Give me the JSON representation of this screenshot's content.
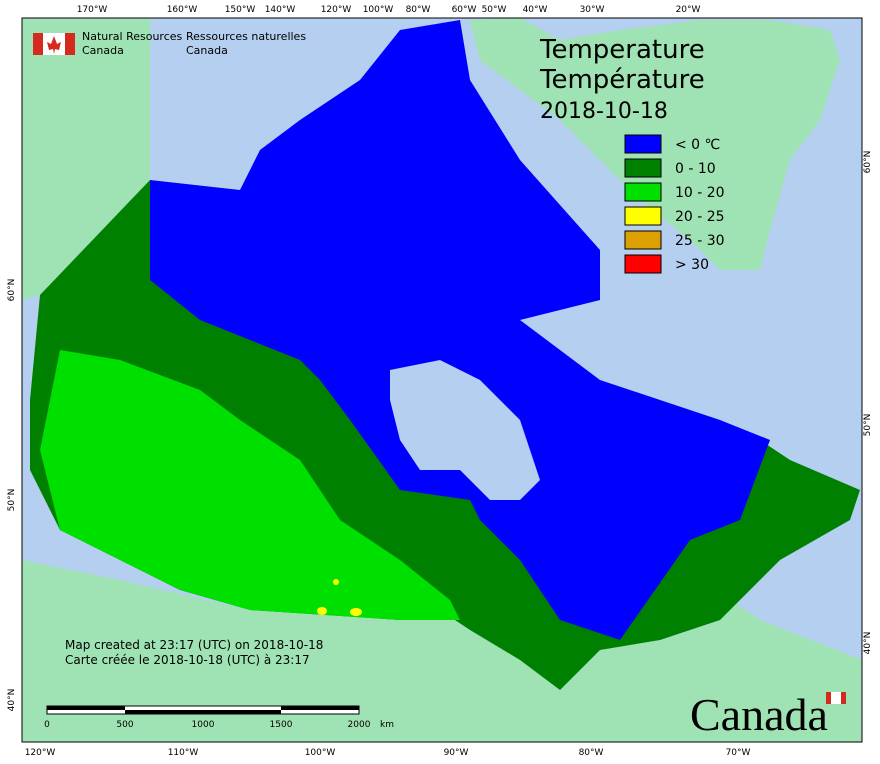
{
  "header": {
    "org_en": [
      "Natural Resources",
      "Canada"
    ],
    "org_fr": [
      "Ressources naturelles",
      "Canada"
    ]
  },
  "title": {
    "en": "Temperature",
    "fr": "Température",
    "date": "2018-10-18"
  },
  "legend": [
    {
      "label": "< 0 ℃",
      "color": "#0000ff"
    },
    {
      "label": "0 - 10",
      "color": "#008000"
    },
    {
      "label": "10 - 20",
      "color": "#00e000"
    },
    {
      "label": "20 - 25",
      "color": "#ffff00"
    },
    {
      "label": "25 - 30",
      "color": "#dca000"
    },
    {
      "label": "> 30",
      "color": "#ff0000"
    }
  ],
  "graticule": {
    "top": [
      "170°W",
      "160°W",
      "150°W",
      "140°W",
      "120°W",
      "100°W",
      "80°W",
      "60°W",
      "50°W",
      "40°W",
      "30°W",
      "20°W"
    ],
    "bottom": [
      "120°W",
      "110°W",
      "100°W",
      "90°W",
      "80°W",
      "70°W"
    ],
    "left": [
      "60°N",
      "50°N",
      "40°N"
    ],
    "right": [
      "60°N",
      "50°N",
      "40°N"
    ]
  },
  "notes": [
    "Map created at 23:17 (UTC) on 2018-10-18",
    "Carte créée le 2018-10-18 (UTC) à 23:17"
  ],
  "scale_bar": {
    "labels": [
      "0",
      "500",
      "1000",
      "1500",
      "2000"
    ],
    "unit": "km"
  },
  "wordmark": "Canada"
}
